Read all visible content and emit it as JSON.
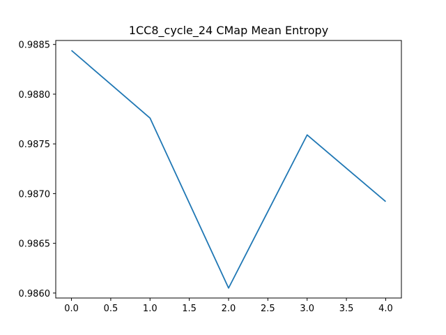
{
  "chart_data": {
    "type": "line",
    "title": "1CC8_cycle_24 CMap Mean Entropy",
    "xlabel": "",
    "ylabel": "",
    "xlim": [
      -0.2,
      4.2
    ],
    "ylim": [
      0.98595,
      0.98854
    ],
    "x_ticks": [
      0.0,
      0.5,
      1.0,
      1.5,
      2.0,
      2.5,
      3.0,
      3.5,
      4.0
    ],
    "x_tick_labels": [
      "0.0",
      "0.5",
      "1.0",
      "1.5",
      "2.0",
      "2.5",
      "3.0",
      "3.5",
      "4.0"
    ],
    "y_ticks": [
      0.986,
      0.9865,
      0.987,
      0.9875,
      0.988,
      0.9885
    ],
    "y_tick_labels": [
      "0.9860",
      "0.9865",
      "0.9870",
      "0.9875",
      "0.9880",
      "0.9885"
    ],
    "grid": false,
    "series": [
      {
        "color": "#1f77b4",
        "x": [
          0,
          1,
          2,
          3,
          4
        ],
        "values": [
          0.98844,
          0.98776,
          0.98605,
          0.98759,
          0.98692
        ]
      }
    ]
  }
}
